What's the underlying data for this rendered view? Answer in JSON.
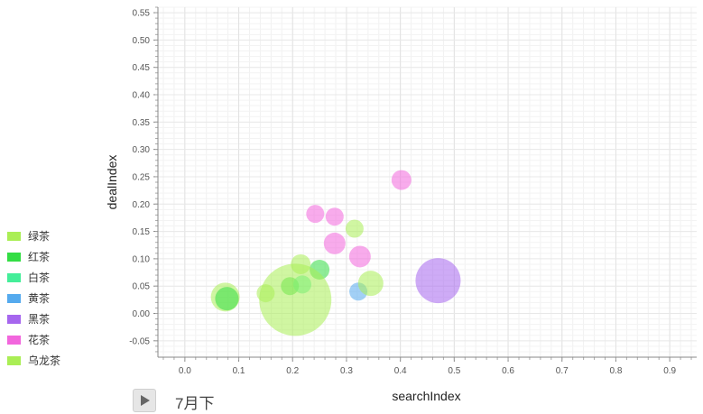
{
  "chart_data": {
    "type": "scatter",
    "subtype": "bubble",
    "xlabel": "searchIndex",
    "ylabel": "dealIndex",
    "xlim": [
      -0.05,
      0.95
    ],
    "ylim": [
      -0.08,
      0.56
    ],
    "x_ticks": [
      "0.0",
      "0.1",
      "0.2",
      "0.3",
      "0.4",
      "0.5",
      "0.6",
      "0.7",
      "0.8",
      "0.9"
    ],
    "y_ticks": [
      "-0.05",
      "0.00",
      "0.05",
      "0.10",
      "0.15",
      "0.20",
      "0.25",
      "0.30",
      "0.35",
      "0.40",
      "0.45",
      "0.50",
      "0.55"
    ],
    "grid": true,
    "legend_position": "left",
    "series": [
      {
        "name": "绿茶",
        "color": "#aaee55",
        "points": [
          {
            "x": 0.075,
            "y": 0.03,
            "size": 16
          },
          {
            "x": 0.215,
            "y": 0.09,
            "size": 11
          },
          {
            "x": 0.315,
            "y": 0.155,
            "size": 10
          }
        ]
      },
      {
        "name": "红茶",
        "color": "#33dd44",
        "points": [
          {
            "x": 0.078,
            "y": 0.027,
            "size": 13
          },
          {
            "x": 0.195,
            "y": 0.05,
            "size": 10
          },
          {
            "x": 0.25,
            "y": 0.08,
            "size": 11
          }
        ]
      },
      {
        "name": "白茶",
        "color": "#44ee99",
        "points": [
          {
            "x": 0.218,
            "y": 0.053,
            "size": 10
          }
        ]
      },
      {
        "name": "黄茶",
        "color": "#55aaee",
        "points": [
          {
            "x": 0.322,
            "y": 0.04,
            "size": 10
          }
        ]
      },
      {
        "name": "黑茶",
        "color": "#a666ee",
        "points": [
          {
            "x": 0.47,
            "y": 0.06,
            "size": 25
          }
        ]
      },
      {
        "name": "花茶",
        "color": "#f266dd",
        "points": [
          {
            "x": 0.242,
            "y": 0.182,
            "size": 10
          },
          {
            "x": 0.278,
            "y": 0.177,
            "size": 10
          },
          {
            "x": 0.278,
            "y": 0.128,
            "size": 12
          },
          {
            "x": 0.325,
            "y": 0.104,
            "size": 12
          },
          {
            "x": 0.402,
            "y": 0.244,
            "size": 11
          }
        ]
      },
      {
        "name": "乌龙茶",
        "color": "#aaee55",
        "points": [
          {
            "x": 0.205,
            "y": 0.025,
            "size": 40
          },
          {
            "x": 0.15,
            "y": 0.037,
            "size": 10
          },
          {
            "x": 0.345,
            "y": 0.055,
            "size": 14
          }
        ]
      }
    ]
  },
  "timeline": {
    "current": "7月下"
  },
  "legend": {
    "items": [
      {
        "label": "绿茶",
        "color": "#aaee55"
      },
      {
        "label": "红茶",
        "color": "#33dd44"
      },
      {
        "label": "白茶",
        "color": "#44ee99"
      },
      {
        "label": "黄茶",
        "color": "#55aaee"
      },
      {
        "label": "黑茶",
        "color": "#a666ee"
      },
      {
        "label": "花茶",
        "color": "#f266dd"
      },
      {
        "label": "乌龙茶",
        "color": "#aaee55"
      }
    ]
  }
}
